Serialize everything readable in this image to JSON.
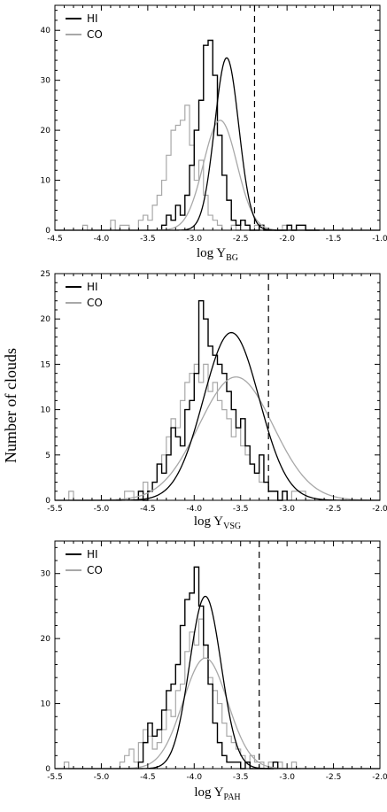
{
  "ylabel": "Number of clouds",
  "colors": {
    "hi": "#000000",
    "co": "#a8a8a8",
    "dashed": "#000000"
  },
  "chart_data": [
    {
      "type": "histogram",
      "xlabel_main": "log Y",
      "xlabel_sub": "BG",
      "xlim": [
        -4.5,
        -1.0
      ],
      "ylim": [
        0,
        45
      ],
      "xticks": [
        -4.5,
        -4.0,
        -3.5,
        -3.0,
        -2.5,
        -2.0,
        -1.5,
        -1.0
      ],
      "xtick_labels": [
        "-4.5",
        "-4.0",
        "-3.5",
        "-3.0",
        "-2.5",
        "-2.0",
        "-1.5",
        "-1.0"
      ],
      "yticks": [
        0,
        10,
        20,
        30,
        40
      ],
      "ytick_labels": [
        "0",
        "10",
        "20",
        "30",
        "40"
      ],
      "legend": [
        {
          "name": "HI",
          "color": "#000000"
        },
        {
          "name": "CO",
          "color": "#a8a8a8"
        }
      ],
      "vline": -2.35,
      "bin_width": 0.05,
      "series": [
        {
          "name": "HI",
          "x0": -3.35,
          "counts": [
            1,
            3,
            2,
            5,
            3,
            7,
            13,
            20,
            26,
            37,
            38,
            31,
            19,
            11,
            6,
            2,
            1,
            2,
            1,
            0,
            0,
            1,
            0,
            0,
            0,
            0,
            0,
            1,
            0,
            1,
            1,
            0,
            0,
            0
          ]
        },
        {
          "name": "CO",
          "x0": -4.2,
          "counts": [
            1,
            0,
            0,
            0,
            0,
            0,
            2,
            0,
            1,
            1,
            0,
            0,
            2,
            3,
            2,
            5,
            7,
            10,
            15,
            20,
            21,
            22,
            25,
            17,
            10,
            14,
            7,
            3,
            2,
            1,
            0,
            0,
            1,
            0,
            0,
            0,
            0,
            1,
            0,
            0,
            0,
            0,
            0,
            1,
            0,
            0,
            0,
            0,
            0
          ]
        }
      ],
      "fits": [
        {
          "name": "HI",
          "mu": -2.65,
          "sigma": 0.13,
          "amp": 34.5
        },
        {
          "name": "CO",
          "mu": -2.72,
          "sigma": 0.18,
          "amp": 22.0
        }
      ]
    },
    {
      "type": "histogram",
      "xlabel_main": "log Y",
      "xlabel_sub": "VSG",
      "xlim": [
        -5.5,
        -2.0
      ],
      "ylim": [
        0,
        25
      ],
      "xticks": [
        -5.5,
        -5.0,
        -4.5,
        -4.0,
        -3.5,
        -3.0,
        -2.5,
        -2.0
      ],
      "xtick_labels": [
        "-5.5",
        "-5.0",
        "-4.5",
        "-4.0",
        "-3.5",
        "-3.0",
        "-2.5",
        "-2.0"
      ],
      "yticks": [
        0,
        5,
        10,
        15,
        20,
        25
      ],
      "ytick_labels": [
        "0",
        "5",
        "10",
        "15",
        "20",
        "25"
      ],
      "legend": [
        {
          "name": "HI",
          "color": "#000000"
        },
        {
          "name": "CO",
          "color": "#a8a8a8"
        }
      ],
      "vline": -3.2,
      "bin_width": 0.05,
      "series": [
        {
          "name": "HI",
          "x0": -4.6,
          "counts": [
            1,
            0,
            1,
            2,
            4,
            3,
            5,
            8,
            7,
            6,
            10,
            11,
            14,
            22,
            20,
            17,
            16,
            15,
            14,
            12,
            10,
            8,
            9,
            6,
            4,
            3,
            5,
            2,
            1,
            1,
            0,
            1
          ]
        },
        {
          "name": "CO",
          "x0": -5.35,
          "counts": [
            1,
            0,
            0,
            0,
            0,
            0,
            0,
            0,
            0,
            0,
            0,
            0,
            1,
            1,
            0,
            1,
            2,
            1,
            2,
            4,
            5,
            7,
            9,
            8,
            11,
            13,
            14,
            15,
            13,
            15,
            12,
            13,
            11,
            10,
            9,
            7,
            8,
            6,
            5,
            4,
            3,
            2,
            2,
            1,
            1,
            0,
            1,
            0,
            1,
            1,
            1,
            0
          ]
        }
      ],
      "fits": [
        {
          "name": "HI",
          "mu": -3.6,
          "sigma": 0.3,
          "amp": 18.5
        },
        {
          "name": "CO",
          "mu": -3.55,
          "sigma": 0.4,
          "amp": 13.6
        }
      ]
    },
    {
      "type": "histogram",
      "xlabel_main": "log Y",
      "xlabel_sub": "PAH",
      "xlim": [
        -5.5,
        -2.0
      ],
      "ylim": [
        0,
        35
      ],
      "xticks": [
        -5.5,
        -5.0,
        -4.5,
        -4.0,
        -3.5,
        -3.0,
        -2.5,
        -2.0
      ],
      "xtick_labels": [
        "-5.5",
        "-5.0",
        "-4.5",
        "-4.0",
        "-3.5",
        "-3.0",
        "-2.5",
        "-2.0"
      ],
      "yticks": [
        0,
        10,
        20,
        30
      ],
      "ytick_labels": [
        "0",
        "10",
        "20",
        "30"
      ],
      "legend": [
        {
          "name": "HI",
          "color": "#000000"
        },
        {
          "name": "CO",
          "color": "#a8a8a8"
        }
      ],
      "vline": -3.3,
      "bin_width": 0.05,
      "series": [
        {
          "name": "HI",
          "x0": -4.6,
          "counts": [
            1,
            4,
            7,
            5,
            6,
            9,
            12,
            13,
            16,
            22,
            26,
            27,
            31,
            25,
            19,
            13,
            7,
            4,
            2,
            1,
            1,
            1,
            0,
            1,
            0,
            0,
            0,
            0,
            0,
            1
          ]
        },
        {
          "name": "CO",
          "x0": -5.4,
          "counts": [
            1,
            0,
            0,
            0,
            0,
            0,
            0,
            0,
            0,
            0,
            0,
            0,
            1,
            2,
            3,
            1,
            4,
            6,
            5,
            3,
            4,
            6,
            9,
            8,
            12,
            13,
            18,
            21,
            19,
            23,
            17,
            14,
            12,
            10,
            7,
            5,
            4,
            3,
            2,
            1,
            2,
            1,
            1,
            0,
            1,
            0,
            1,
            0,
            0,
            1,
            0
          ]
        }
      ],
      "fits": [
        {
          "name": "HI",
          "mu": -3.88,
          "sigma": 0.17,
          "amp": 26.5
        },
        {
          "name": "CO",
          "mu": -3.88,
          "sigma": 0.24,
          "amp": 17.0
        }
      ]
    }
  ]
}
